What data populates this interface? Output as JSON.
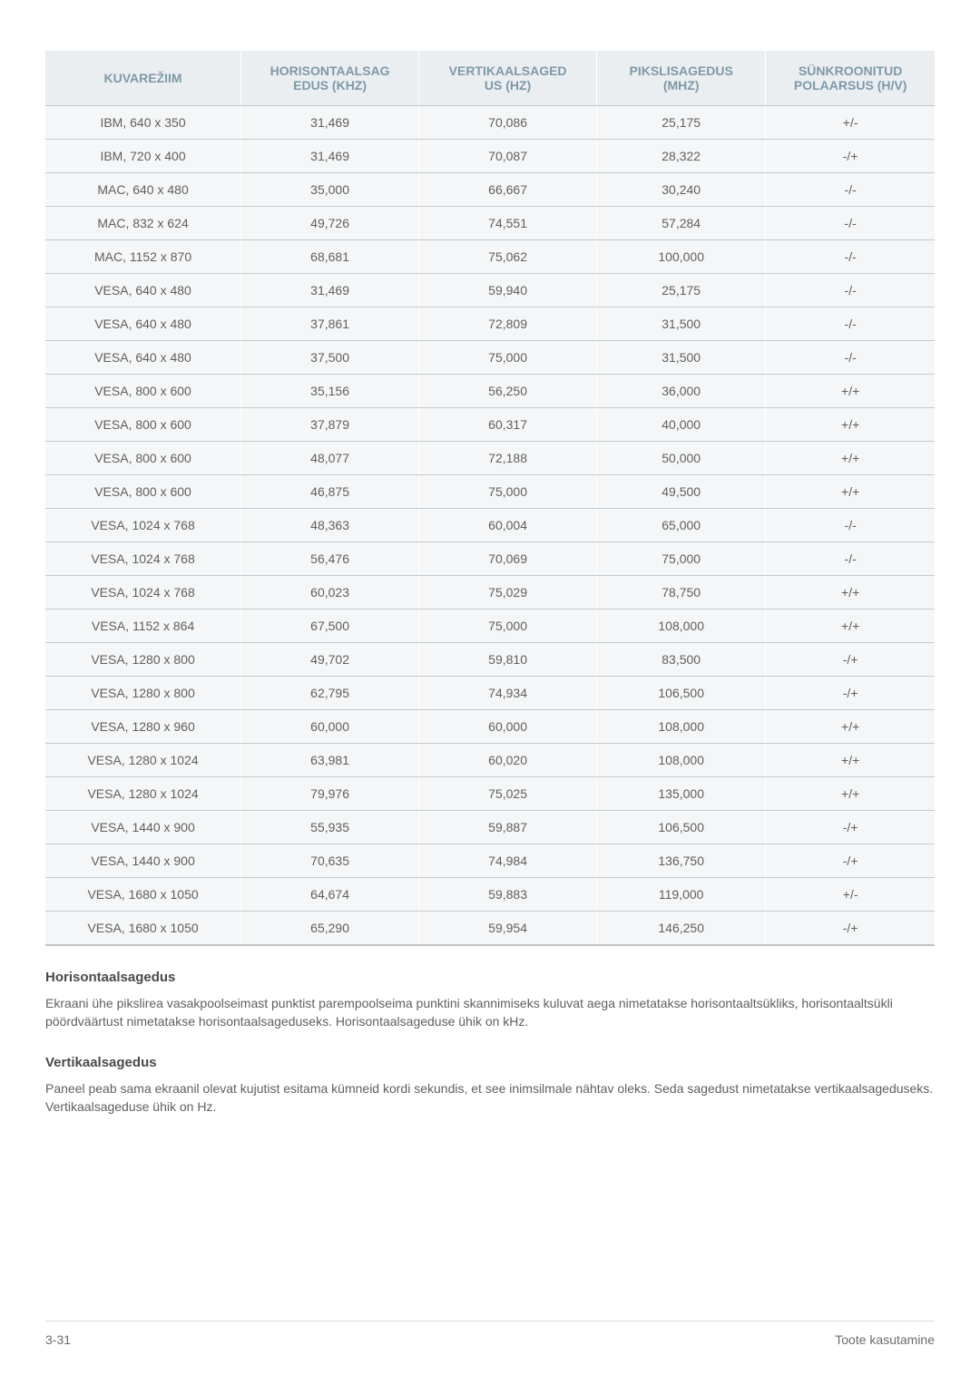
{
  "table": {
    "header_bg": "#ebeef1",
    "header_fg": "#7d99a8",
    "row_bg": "#f5f6f7",
    "row_fg": "#5f5f5f",
    "border_color": "#c6c9cb",
    "header_fontsize": 14,
    "cell_fontsize": 14,
    "columns": [
      "KUVAREŽIIM",
      "HORISONTAALSAGEDUS (KHZ)",
      "VERTIKAALSAGEDUS (HZ)",
      "PIKSLISAGEDUS (MHZ)",
      "SÜNKROONITUD POLAARSUS (H/V)"
    ],
    "column_headers_split": [
      [
        "KUVAREŽIIM"
      ],
      [
        "HORISONTAALSAG",
        "EDUS (KHZ)"
      ],
      [
        "VERTIKAALSAGED",
        "US (HZ)"
      ],
      [
        "PIKSLISAGEDUS",
        "(MHZ)"
      ],
      [
        "SÜNKROONITUD",
        "POLAARSUS (H/V)"
      ]
    ],
    "column_widths_pct": [
      22,
      20,
      20,
      19,
      19
    ],
    "alignment": [
      "center",
      "center",
      "center",
      "center",
      "center"
    ],
    "rows": [
      [
        "IBM, 640 x 350",
        "31,469",
        "70,086",
        "25,175",
        "+/-"
      ],
      [
        "IBM, 720 x 400",
        "31,469",
        "70,087",
        "28,322",
        "-/+"
      ],
      [
        "MAC, 640 x 480",
        "35,000",
        "66,667",
        "30,240",
        "-/-"
      ],
      [
        "MAC, 832 x 624",
        "49,726",
        "74,551",
        "57,284",
        "-/-"
      ],
      [
        "MAC, 1152 x 870",
        "68,681",
        "75,062",
        "100,000",
        "-/-"
      ],
      [
        "VESA, 640 x 480",
        "31,469",
        "59,940",
        "25,175",
        "-/-"
      ],
      [
        "VESA, 640 x 480",
        "37,861",
        "72,809",
        "31,500",
        "-/-"
      ],
      [
        "VESA, 640 x 480",
        "37,500",
        "75,000",
        "31,500",
        "-/-"
      ],
      [
        "VESA, 800 x 600",
        "35,156",
        "56,250",
        "36,000",
        "+/+"
      ],
      [
        "VESA, 800 x 600",
        "37,879",
        "60,317",
        "40,000",
        "+/+"
      ],
      [
        "VESA, 800 x 600",
        "48,077",
        "72,188",
        "50,000",
        "+/+"
      ],
      [
        "VESA, 800 x 600",
        "46,875",
        "75,000",
        "49,500",
        "+/+"
      ],
      [
        "VESA, 1024 x 768",
        "48,363",
        "60,004",
        "65,000",
        "-/-"
      ],
      [
        "VESA, 1024 x 768",
        "56,476",
        "70,069",
        "75,000",
        "-/-"
      ],
      [
        "VESA, 1024 x 768",
        "60,023",
        "75,029",
        "78,750",
        "+/+"
      ],
      [
        "VESA, 1152 x 864",
        "67,500",
        "75,000",
        "108,000",
        "+/+"
      ],
      [
        "VESA, 1280 x 800",
        "49,702",
        "59,810",
        "83,500",
        "-/+"
      ],
      [
        "VESA, 1280 x 800",
        "62,795",
        "74,934",
        "106,500",
        "-/+"
      ],
      [
        "VESA, 1280 x 960",
        "60,000",
        "60,000",
        "108,000",
        "+/+"
      ],
      [
        "VESA, 1280 x 1024",
        "63,981",
        "60,020",
        "108,000",
        "+/+"
      ],
      [
        "VESA, 1280 x 1024",
        "79,976",
        "75,025",
        "135,000",
        "+/+"
      ],
      [
        "VESA, 1440 x 900",
        "55,935",
        "59,887",
        "106,500",
        "-/+"
      ],
      [
        "VESA, 1440 x 900",
        "70,635",
        "74,984",
        "136,750",
        "-/+"
      ],
      [
        "VESA, 1680 x 1050",
        "64,674",
        "59,883",
        "119,000",
        "+/-"
      ],
      [
        "VESA, 1680 x 1050",
        "65,290",
        "59,954",
        "146,250",
        "-/+"
      ]
    ]
  },
  "sections": {
    "h1_title": "Horisontaalsagedus",
    "h1_body": "Ekraani ühe pikslirea vasakpoolseimast punktist parempoolseima punktini skannimiseks kuluvat aega nimetatakse horisontaaltsükliks, horisontaaltsükli pöördväärtust nimetatakse horisontaalsageduseks. Horisontaalsageduse ühik on kHz.",
    "h2_title": "Vertikaalsagedus",
    "h2_body": "Paneel peab sama ekraanil olevat kujutist esitama kümneid kordi sekundis, et see inimsilmale nähtav oleks. Seda sagedust nimetatakse vertikaalsageduseks. Vertikaalsageduse ühik on Hz."
  },
  "footer": {
    "left": "3-31",
    "right": "Toote kasutamine",
    "border_color": "#d8dadc",
    "fg": "#6b6b6b",
    "fontsize": 14
  },
  "page_bg": "#ffffff"
}
